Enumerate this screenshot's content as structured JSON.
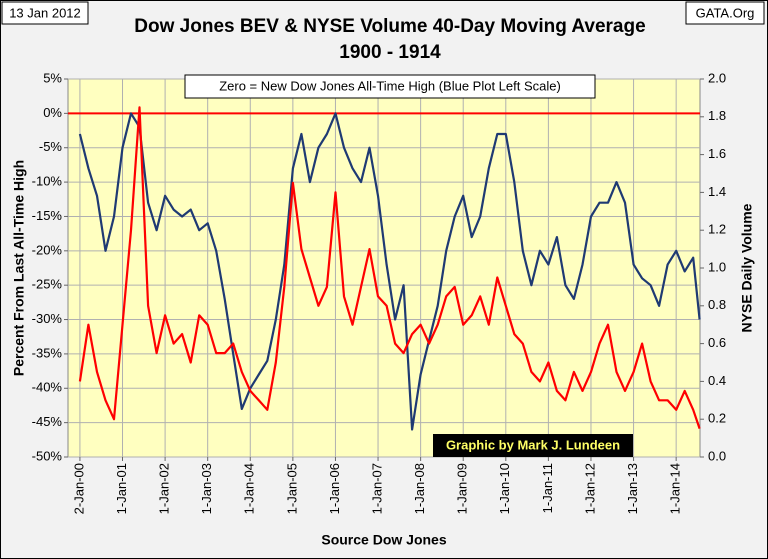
{
  "chart_data": {
    "type": "line",
    "date_label": "13 Jan 2012",
    "source_label": "GATA.Org",
    "title": "Dow Jones BEV & NYSE Volume 40-Day Moving Average",
    "subtitle": "1900 - 1914",
    "annotation": "Zero = New Dow Jones All-Time High (Blue Plot Left Scale)",
    "credit": "Graphic by Mark J. Lundeen",
    "x_label": "Source Dow Jones",
    "y_label": "Percent  From Last All-Time High",
    "y2_label": "NYSE Daily Volume",
    "x": [
      1900.0,
      1900.2,
      1900.4,
      1900.6,
      1900.8,
      1901.0,
      1901.2,
      1901.4,
      1901.6,
      1901.8,
      1902.0,
      1902.2,
      1902.4,
      1902.6,
      1902.8,
      1903.0,
      1903.2,
      1903.4,
      1903.6,
      1903.8,
      1904.0,
      1904.2,
      1904.4,
      1904.6,
      1904.8,
      1905.0,
      1905.2,
      1905.4,
      1905.6,
      1905.8,
      1906.0,
      1906.2,
      1906.4,
      1906.6,
      1906.8,
      1907.0,
      1907.2,
      1907.4,
      1907.6,
      1907.8,
      1908.0,
      1908.2,
      1908.4,
      1908.6,
      1908.8,
      1909.0,
      1909.2,
      1909.4,
      1909.6,
      1909.8,
      1910.0,
      1910.2,
      1910.4,
      1910.6,
      1910.8,
      1911.0,
      1911.2,
      1911.4,
      1911.6,
      1911.8,
      1912.0,
      1912.2,
      1912.4,
      1912.6,
      1912.8,
      1913.0,
      1913.2,
      1913.4,
      1913.6,
      1913.8,
      1914.0,
      1914.2,
      1914.4,
      1914.55
    ],
    "series": [
      {
        "name": "Dow Jones BEV",
        "color": "#1f3a73",
        "values": [
          -3,
          -8,
          -12,
          -20,
          -15,
          -5,
          0,
          -2,
          -13,
          -17,
          -12,
          -14,
          -15,
          -14,
          -17,
          -16,
          -20,
          -27,
          -35,
          -43,
          -40,
          -38,
          -36,
          -30,
          -22,
          -8,
          -3,
          -10,
          -5,
          -3,
          0,
          -5,
          -8,
          -10,
          -5,
          -12,
          -22,
          -30,
          -25,
          -46,
          -38,
          -33,
          -28,
          -20,
          -15,
          -12,
          -18,
          -15,
          -8,
          -3,
          -3,
          -10,
          -20,
          -25,
          -20,
          -22,
          -18,
          -25,
          -27,
          -22,
          -15,
          -13,
          -13,
          -10,
          -13,
          -22,
          -24,
          -25,
          -28,
          -22,
          -20,
          -23,
          -21,
          -30
        ]
      },
      {
        "name": "NYSE Volume 40-Day Moving Average",
        "color": "#ff0000",
        "axis": "y2",
        "values": [
          0.4,
          0.7,
          0.45,
          0.3,
          0.2,
          0.7,
          1.2,
          1.85,
          0.8,
          0.55,
          0.75,
          0.6,
          0.65,
          0.5,
          0.75,
          0.7,
          0.55,
          0.55,
          0.6,
          0.45,
          0.35,
          0.3,
          0.25,
          0.5,
          0.9,
          1.45,
          1.1,
          0.95,
          0.8,
          0.9,
          1.4,
          0.85,
          0.7,
          0.9,
          1.1,
          0.85,
          0.8,
          0.6,
          0.55,
          0.65,
          0.7,
          0.6,
          0.7,
          0.85,
          0.9,
          0.7,
          0.75,
          0.85,
          0.7,
          0.95,
          0.8,
          0.65,
          0.6,
          0.45,
          0.4,
          0.5,
          0.35,
          0.3,
          0.45,
          0.35,
          0.45,
          0.6,
          0.7,
          0.45,
          0.35,
          0.45,
          0.6,
          0.4,
          0.3,
          0.3,
          0.25,
          0.35,
          0.25,
          0.15
        ]
      }
    ],
    "hline": {
      "value": 0,
      "color": "#ff0000"
    },
    "xlim": [
      1899.72,
      1914.56
    ],
    "xticks": [
      {
        "value": 1900,
        "label": "2-Jan-00"
      },
      {
        "value": 1901,
        "label": "1-Jan-01"
      },
      {
        "value": 1902,
        "label": "1-Jan-02"
      },
      {
        "value": 1903,
        "label": "1-Jan-03"
      },
      {
        "value": 1904,
        "label": "1-Jan-04"
      },
      {
        "value": 1905,
        "label": "1-Jan-05"
      },
      {
        "value": 1906,
        "label": "1-Jan-06"
      },
      {
        "value": 1907,
        "label": "1-Jan-07"
      },
      {
        "value": 1908,
        "label": "1-Jan-08"
      },
      {
        "value": 1909,
        "label": "1-Jan-09"
      },
      {
        "value": 1910,
        "label": "1-Jan-10"
      },
      {
        "value": 1911,
        "label": "1-Jan-11"
      },
      {
        "value": 1912,
        "label": "1-Jan-12"
      },
      {
        "value": 1913,
        "label": "1-Jan-13"
      },
      {
        "value": 1914,
        "label": "1-Jan-14"
      }
    ],
    "ylim": [
      -50,
      5
    ],
    "yticks": [
      {
        "value": 5,
        "label": "5%"
      },
      {
        "value": 0,
        "label": "0%"
      },
      {
        "value": -5,
        "label": "-5%"
      },
      {
        "value": -10,
        "label": "-10%"
      },
      {
        "value": -15,
        "label": "-15%"
      },
      {
        "value": -20,
        "label": "-20%"
      },
      {
        "value": -25,
        "label": "-25%"
      },
      {
        "value": -30,
        "label": "-30%"
      },
      {
        "value": -35,
        "label": "-35%"
      },
      {
        "value": -40,
        "label": "-40%"
      },
      {
        "value": -45,
        "label": "-45%"
      },
      {
        "value": -50,
        "label": "-50%"
      }
    ],
    "y2lim": [
      0,
      2
    ],
    "y2ticks": [
      {
        "value": 0,
        "label": "0.0"
      },
      0.2,
      0.4,
      0.6,
      0.8,
      {
        "value": 1,
        "label": "1.0"
      },
      1.2,
      1.4,
      1.6,
      1.8,
      {
        "value": 2,
        "label": "2.0"
      }
    ],
    "grid": true,
    "plot_background": "#ffffc0"
  }
}
